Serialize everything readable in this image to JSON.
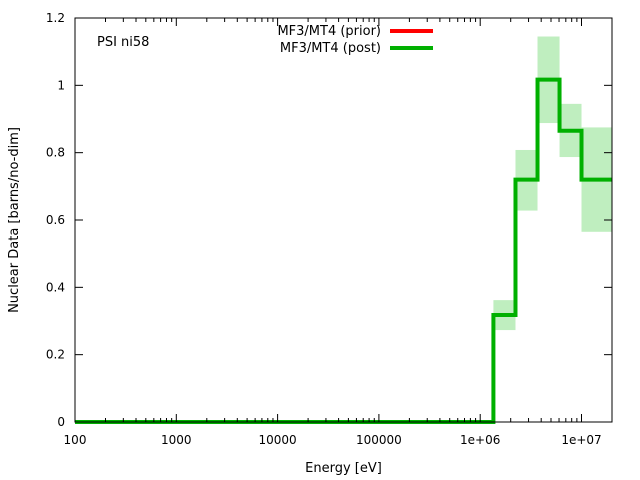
{
  "chart_data": {
    "type": "line",
    "annotation": "PSI ni58",
    "xlabel": "Energy [eV]",
    "ylabel": "Nuclear Data [barns/no-dim]",
    "xscale": "log",
    "xlim": [
      100,
      20000000
    ],
    "ylim": [
      0,
      1.2
    ],
    "grid": false,
    "legend_position": "top-center",
    "x_ticks": [
      {
        "value": 100,
        "label": "100"
      },
      {
        "value": 1000,
        "label": "1000"
      },
      {
        "value": 10000,
        "label": "10000"
      },
      {
        "value": 100000,
        "label": "100000"
      },
      {
        "value": 1000000,
        "label": "1e+06"
      },
      {
        "value": 10000000,
        "label": "1e+07"
      }
    ],
    "y_ticks": [
      {
        "value": 0,
        "label": "0"
      },
      {
        "value": 0.2,
        "label": "0.2"
      },
      {
        "value": 0.4,
        "label": "0.4"
      },
      {
        "value": 0.6,
        "label": "0.6"
      },
      {
        "value": 0.8,
        "label": "0.8"
      },
      {
        "value": 1.0,
        "label": "1"
      },
      {
        "value": 1.2,
        "label": "1.2"
      }
    ],
    "series": [
      {
        "name": "MF3/MT4 (prior)",
        "color": "#ff0000",
        "style": "step",
        "points": []
      },
      {
        "name": "MF3/MT4 (post)",
        "color": "#00b000",
        "style": "step",
        "bands_color": "#bfeebf",
        "points": [
          {
            "x": 100,
            "y": 0
          },
          {
            "x": 1350000,
            "y": 0
          },
          {
            "x": 1350000,
            "y": 0.318
          },
          {
            "x": 2230000,
            "y": 0.318
          },
          {
            "x": 2230000,
            "y": 0.72
          },
          {
            "x": 3680000,
            "y": 0.72
          },
          {
            "x": 3680000,
            "y": 1.017
          },
          {
            "x": 6070000,
            "y": 1.017
          },
          {
            "x": 6070000,
            "y": 0.865
          },
          {
            "x": 10000000,
            "y": 0.865
          },
          {
            "x": 10000000,
            "y": 0.72
          },
          {
            "x": 20000000,
            "y": 0.72
          }
        ],
        "bands": [
          {
            "x0": 1350000,
            "x1": 2230000,
            "lo": 0.273,
            "hi": 0.362
          },
          {
            "x0": 2230000,
            "x1": 3680000,
            "lo": 0.628,
            "hi": 0.808
          },
          {
            "x0": 3680000,
            "x1": 6070000,
            "lo": 0.888,
            "hi": 1.145
          },
          {
            "x0": 6070000,
            "x1": 10000000,
            "lo": 0.787,
            "hi": 0.945
          },
          {
            "x0": 10000000,
            "x1": 20000000,
            "lo": 0.565,
            "hi": 0.875
          }
        ]
      }
    ]
  }
}
